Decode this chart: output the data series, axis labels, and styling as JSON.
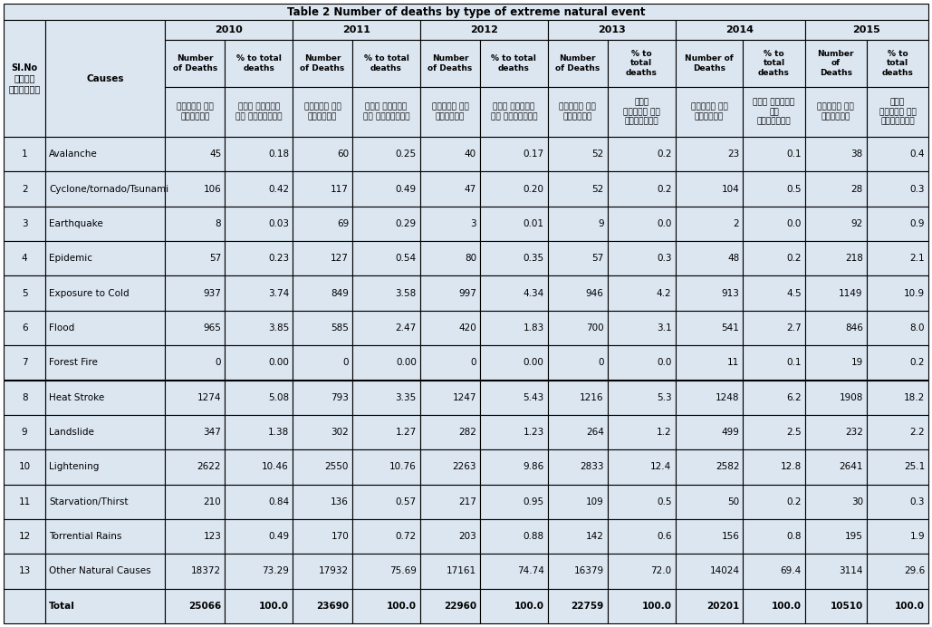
{
  "title": "Table 2 Number of deaths by type of extreme natural event",
  "bg_color": "#dce6f1",
  "years": [
    "2010",
    "2011",
    "2012",
    "2013",
    "2014",
    "2015"
  ],
  "en_headers": [
    [
      "Number\nof Deaths",
      "% to total\ndeaths"
    ],
    [
      "Number\nof Deaths",
      "% to total\ndeaths"
    ],
    [
      "Number\nof Deaths",
      "% to total\ndeaths"
    ],
    [
      "Number\nof Deaths",
      "% to\ntotal\ndeaths"
    ],
    [
      "Number of\nDeaths",
      "% to\ntotal\ndeaths"
    ],
    [
      "Number\nof\nDeaths",
      "% to\ntotal\ndeaths"
    ]
  ],
  "hi_headers": [
    [
      "मृतों की\nसंख्या",
      "कुल मृतों\nका प्रतिशत"
    ],
    [
      "मृतों की\nसंख्या",
      "कुल मृतों\nका प्रतिशत"
    ],
    [
      "मृतों की\nसंख्या",
      "कुल मृतों\nका प्रतिशत"
    ],
    [
      "मृतों की\nसंख्या",
      "कुल\nमृतों का\nप्रतिशत"
    ],
    [
      "मृतों की\nसंख्या",
      "कुल मृतों\nका\nप्रतिशत"
    ],
    [
      "मृतों की\nसंख्या",
      "कुल\nमृतों का\nप्रतिशत"
    ]
  ],
  "slno_label": "Sl.No\nक्रम\nसंख्या",
  "causes_label": "Causes",
  "row_data": [
    [
      "1",
      "Avalanche",
      "45",
      "0.18",
      "60",
      "0.25",
      "40",
      "0.17",
      "52",
      "0.2",
      "23",
      "0.1",
      "38",
      "0.4"
    ],
    [
      "2",
      "Cyclone/tornado/Tsunami",
      "106",
      "0.42",
      "117",
      "0.49",
      "47",
      "0.20",
      "52",
      "0.2",
      "104",
      "0.5",
      "28",
      "0.3"
    ],
    [
      "3",
      "Earthquake",
      "8",
      "0.03",
      "69",
      "0.29",
      "3",
      "0.01",
      "9",
      "0.0",
      "2",
      "0.0",
      "92",
      "0.9"
    ],
    [
      "4",
      "Epidemic",
      "57",
      "0.23",
      "127",
      "0.54",
      "80",
      "0.35",
      "57",
      "0.3",
      "48",
      "0.2",
      "218",
      "2.1"
    ],
    [
      "5",
      "Exposure to Cold",
      "937",
      "3.74",
      "849",
      "3.58",
      "997",
      "4.34",
      "946",
      "4.2",
      "913",
      "4.5",
      "1149",
      "10.9"
    ],
    [
      "6",
      "Flood",
      "965",
      "3.85",
      "585",
      "2.47",
      "420",
      "1.83",
      "700",
      "3.1",
      "541",
      "2.7",
      "846",
      "8.0"
    ],
    [
      "7",
      "Forest Fire",
      "0",
      "0.00",
      "0",
      "0.00",
      "0",
      "0.00",
      "0",
      "0.0",
      "11",
      "0.1",
      "19",
      "0.2"
    ],
    [
      "8",
      "Heat Stroke",
      "1274",
      "5.08",
      "793",
      "3.35",
      "1247",
      "5.43",
      "1216",
      "5.3",
      "1248",
      "6.2",
      "1908",
      "18.2"
    ],
    [
      "9",
      "Landslide",
      "347",
      "1.38",
      "302",
      "1.27",
      "282",
      "1.23",
      "264",
      "1.2",
      "499",
      "2.5",
      "232",
      "2.2"
    ],
    [
      "10",
      "Lightening",
      "2622",
      "10.46",
      "2550",
      "10.76",
      "2263",
      "9.86",
      "2833",
      "12.4",
      "2582",
      "12.8",
      "2641",
      "25.1"
    ],
    [
      "11",
      "Starvation/Thirst",
      "210",
      "0.84",
      "136",
      "0.57",
      "217",
      "0.95",
      "109",
      "0.5",
      "50",
      "0.2",
      "30",
      "0.3"
    ],
    [
      "12",
      "Torrential Rains",
      "123",
      "0.49",
      "170",
      "0.72",
      "203",
      "0.88",
      "142",
      "0.6",
      "156",
      "0.8",
      "195",
      "1.9"
    ],
    [
      "13",
      "Other Natural Causes",
      "18372",
      "73.29",
      "17932",
      "75.69",
      "17161",
      "74.74",
      "16379",
      "72.0",
      "14024",
      "69.4",
      "3114",
      "29.6"
    ]
  ],
  "total_row": [
    "",
    "Total",
    "25066",
    "100.0",
    "23690",
    "100.0",
    "22960",
    "100.0",
    "22759",
    "100.0",
    "20201",
    "100.0",
    "10510",
    "100.0"
  ]
}
